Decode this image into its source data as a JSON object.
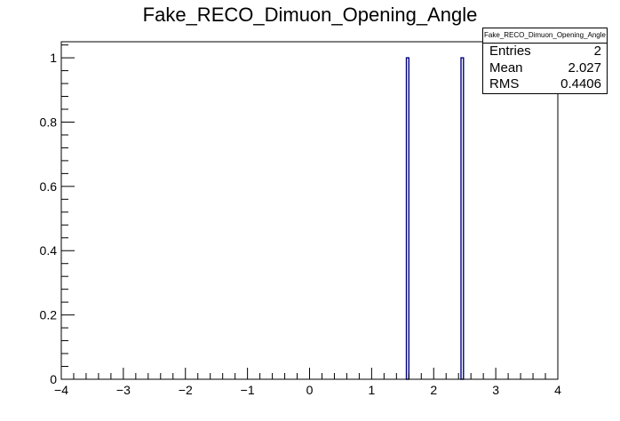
{
  "chart_data": {
    "type": "bar",
    "title": "Fake_RECO_Dimuon_Opening_Angle",
    "xlabel": "",
    "ylabel": "",
    "xlim": [
      -4,
      4
    ],
    "ylim": [
      0,
      1.05
    ],
    "x_ticks": [
      "−4",
      "−3",
      "−2",
      "−1",
      "0",
      "1",
      "2",
      "3",
      "4"
    ],
    "y_ticks": [
      "0",
      "0.2",
      "0.4",
      "0.6",
      "0.8",
      "1"
    ],
    "bins": [
      {
        "x_low": 1.56,
        "x_high": 1.6,
        "value": 1
      },
      {
        "x_low": 2.44,
        "x_high": 2.48,
        "value": 1
      }
    ],
    "stats": {
      "title": "Fake_RECO_Dimuon_Opening_Angle",
      "rows": [
        {
          "label": "Entries",
          "value": "2"
        },
        {
          "label": "Mean",
          "value": "2.027"
        },
        {
          "label": "RMS",
          "value": "0.4406"
        }
      ]
    },
    "colors": {
      "bar": "#000080",
      "axis": "#000000"
    }
  }
}
